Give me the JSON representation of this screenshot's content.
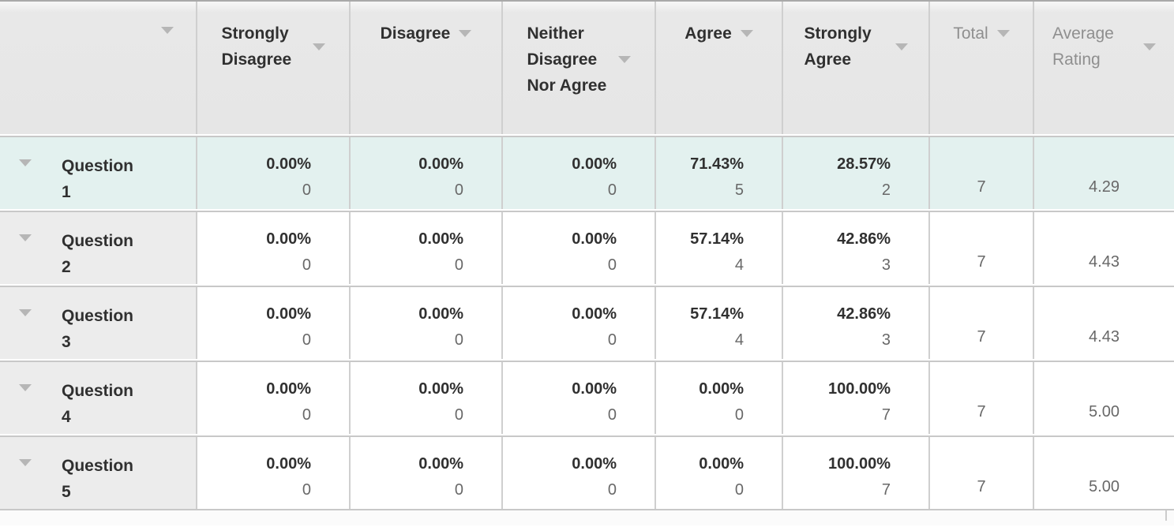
{
  "colors": {
    "highlight_row_bg": "#e3f1ef",
    "header_bg": "#e8e8e8",
    "label_column_bg": "#ececec",
    "grid_border": "#c8c8c8",
    "top_border": "#a9a9a9",
    "text_dark": "#303030",
    "text_muted": "#8f8f8f",
    "count_text": "#686868",
    "sort_arrow": "#b6b6b6"
  },
  "header": {
    "columns": [
      {
        "label": ""
      },
      {
        "label": "Strongly Disagree"
      },
      {
        "label": "Disagree"
      },
      {
        "label": "Neither Disagree Nor Agree"
      },
      {
        "label": "Agree"
      },
      {
        "label": "Strongly Agree"
      },
      {
        "label": "Total"
      },
      {
        "label": "Average Rating"
      }
    ]
  },
  "rows": [
    {
      "label": "Question 1",
      "highlighted": true,
      "answers": [
        {
          "percent": "0.00%",
          "count": "0"
        },
        {
          "percent": "0.00%",
          "count": "0"
        },
        {
          "percent": "0.00%",
          "count": "0"
        },
        {
          "percent": "71.43%",
          "count": "5"
        },
        {
          "percent": "28.57%",
          "count": "2"
        }
      ],
      "total": "7",
      "average": "4.29"
    },
    {
      "label": "Question 2",
      "highlighted": false,
      "answers": [
        {
          "percent": "0.00%",
          "count": "0"
        },
        {
          "percent": "0.00%",
          "count": "0"
        },
        {
          "percent": "0.00%",
          "count": "0"
        },
        {
          "percent": "57.14%",
          "count": "4"
        },
        {
          "percent": "42.86%",
          "count": "3"
        }
      ],
      "total": "7",
      "average": "4.43"
    },
    {
      "label": "Question 3",
      "highlighted": false,
      "answers": [
        {
          "percent": "0.00%",
          "count": "0"
        },
        {
          "percent": "0.00%",
          "count": "0"
        },
        {
          "percent": "0.00%",
          "count": "0"
        },
        {
          "percent": "57.14%",
          "count": "4"
        },
        {
          "percent": "42.86%",
          "count": "3"
        }
      ],
      "total": "7",
      "average": "4.43"
    },
    {
      "label": "Question 4",
      "highlighted": false,
      "answers": [
        {
          "percent": "0.00%",
          "count": "0"
        },
        {
          "percent": "0.00%",
          "count": "0"
        },
        {
          "percent": "0.00%",
          "count": "0"
        },
        {
          "percent": "0.00%",
          "count": "0"
        },
        {
          "percent": "100.00%",
          "count": "7"
        }
      ],
      "total": "7",
      "average": "5.00"
    },
    {
      "label": "Question 5",
      "highlighted": false,
      "answers": [
        {
          "percent": "0.00%",
          "count": "0"
        },
        {
          "percent": "0.00%",
          "count": "0"
        },
        {
          "percent": "0.00%",
          "count": "0"
        },
        {
          "percent": "0.00%",
          "count": "0"
        },
        {
          "percent": "100.00%",
          "count": "7"
        }
      ],
      "total": "7",
      "average": "5.00"
    }
  ],
  "chart_data": {
    "type": "table",
    "title": "Survey results matrix (Likert scale)",
    "columns": [
      "Question",
      "Strongly Disagree %",
      "Strongly Disagree n",
      "Disagree %",
      "Disagree n",
      "Neither Disagree Nor Agree %",
      "Neither Disagree Nor Agree n",
      "Agree %",
      "Agree n",
      "Strongly Agree %",
      "Strongly Agree n",
      "Total",
      "Average Rating"
    ],
    "rows": [
      [
        "Question 1",
        0.0,
        0,
        0.0,
        0,
        0.0,
        0,
        71.43,
        5,
        28.57,
        2,
        7,
        4.29
      ],
      [
        "Question 2",
        0.0,
        0,
        0.0,
        0,
        0.0,
        0,
        57.14,
        4,
        42.86,
        3,
        7,
        4.43
      ],
      [
        "Question 3",
        0.0,
        0,
        0.0,
        0,
        0.0,
        0,
        57.14,
        4,
        42.86,
        3,
        7,
        4.43
      ],
      [
        "Question 4",
        0.0,
        0,
        0.0,
        0,
        0.0,
        0,
        0.0,
        0,
        100.0,
        7,
        7,
        5.0
      ],
      [
        "Question 5",
        0.0,
        0,
        0.0,
        0,
        0.0,
        0,
        0.0,
        0,
        100.0,
        7,
        7,
        5.0
      ]
    ]
  }
}
